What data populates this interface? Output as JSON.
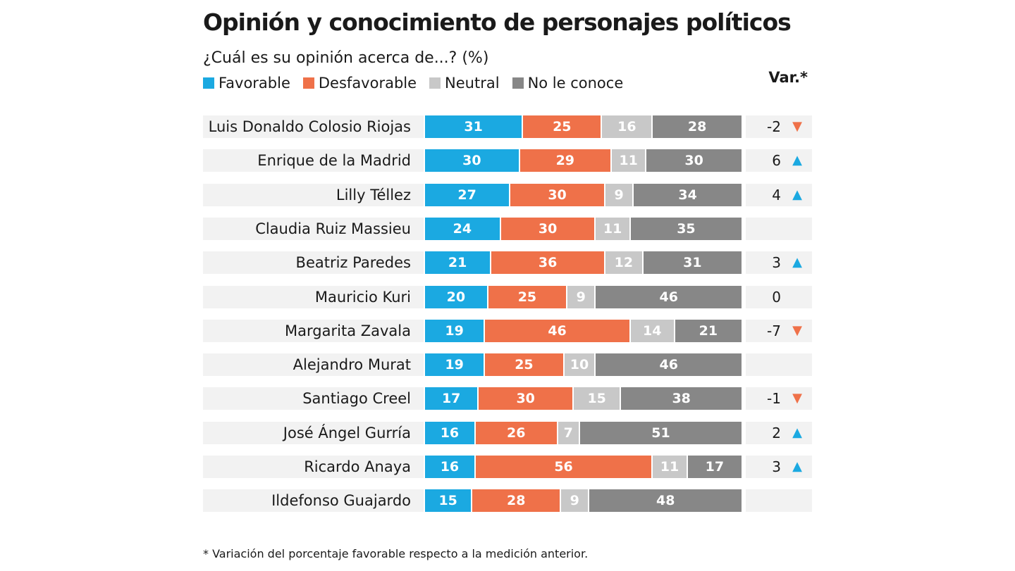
{
  "title": "Opinión y conocimiento de personajes políticos",
  "subtitle": "¿Cuál es su opinión acerca de...? (%)",
  "var_header": "Var.*",
  "footnote": "* Variación del porcentaje favorable respecto a la medición anterior.",
  "colors": {
    "favorable": "#1ba9e1",
    "desfavorable": "#ef7149",
    "neutral": "#c8c8c8",
    "no_le_conoce": "#878787",
    "arrow_up": "#1ba9e1",
    "arrow_down": "#ef7149"
  },
  "legend": [
    {
      "label": "Favorable",
      "color": "#1ba9e1"
    },
    {
      "label": "Desfavorable",
      "color": "#ef7149"
    },
    {
      "label": "Neutral",
      "color": "#c8c8c8"
    },
    {
      "label": "No le conoce",
      "color": "#878787"
    }
  ],
  "chart_data": {
    "type": "bar",
    "orientation": "horizontal",
    "stacked": true,
    "categories": [
      "Luis Donaldo Colosio Riojas",
      "Enrique de la Madrid",
      "Lilly Téllez",
      "Claudia Ruiz Massieu",
      "Beatriz Paredes",
      "Mauricio Kuri",
      "Margarita Zavala",
      "Alejandro Murat",
      "Santiago Creel",
      "José Ángel Gurría",
      "Ricardo Anaya",
      "Ildefonso Guajardo"
    ],
    "series": [
      {
        "name": "Favorable",
        "values": [
          31,
          30,
          27,
          24,
          21,
          20,
          19,
          19,
          17,
          16,
          16,
          15
        ]
      },
      {
        "name": "Desfavorable",
        "values": [
          25,
          29,
          30,
          30,
          36,
          25,
          46,
          25,
          30,
          26,
          56,
          28
        ]
      },
      {
        "name": "Neutral",
        "values": [
          16,
          11,
          9,
          11,
          12,
          9,
          14,
          10,
          15,
          7,
          11,
          9
        ]
      },
      {
        "name": "No le conoce",
        "values": [
          28,
          30,
          34,
          35,
          31,
          46,
          21,
          46,
          38,
          51,
          17,
          48
        ]
      }
    ],
    "variation": [
      {
        "value": "-2",
        "direction": "down"
      },
      {
        "value": "6",
        "direction": "up"
      },
      {
        "value": "4",
        "direction": "up"
      },
      {
        "value": "",
        "direction": ""
      },
      {
        "value": "3",
        "direction": "up"
      },
      {
        "value": "0",
        "direction": ""
      },
      {
        "value": "-7",
        "direction": "down"
      },
      {
        "value": "",
        "direction": ""
      },
      {
        "value": "-1",
        "direction": "down"
      },
      {
        "value": "2",
        "direction": "up"
      },
      {
        "value": "3",
        "direction": "up"
      },
      {
        "value": "",
        "direction": ""
      }
    ],
    "xlim": [
      0,
      100
    ],
    "legend_position": "top-left",
    "grid": false
  }
}
